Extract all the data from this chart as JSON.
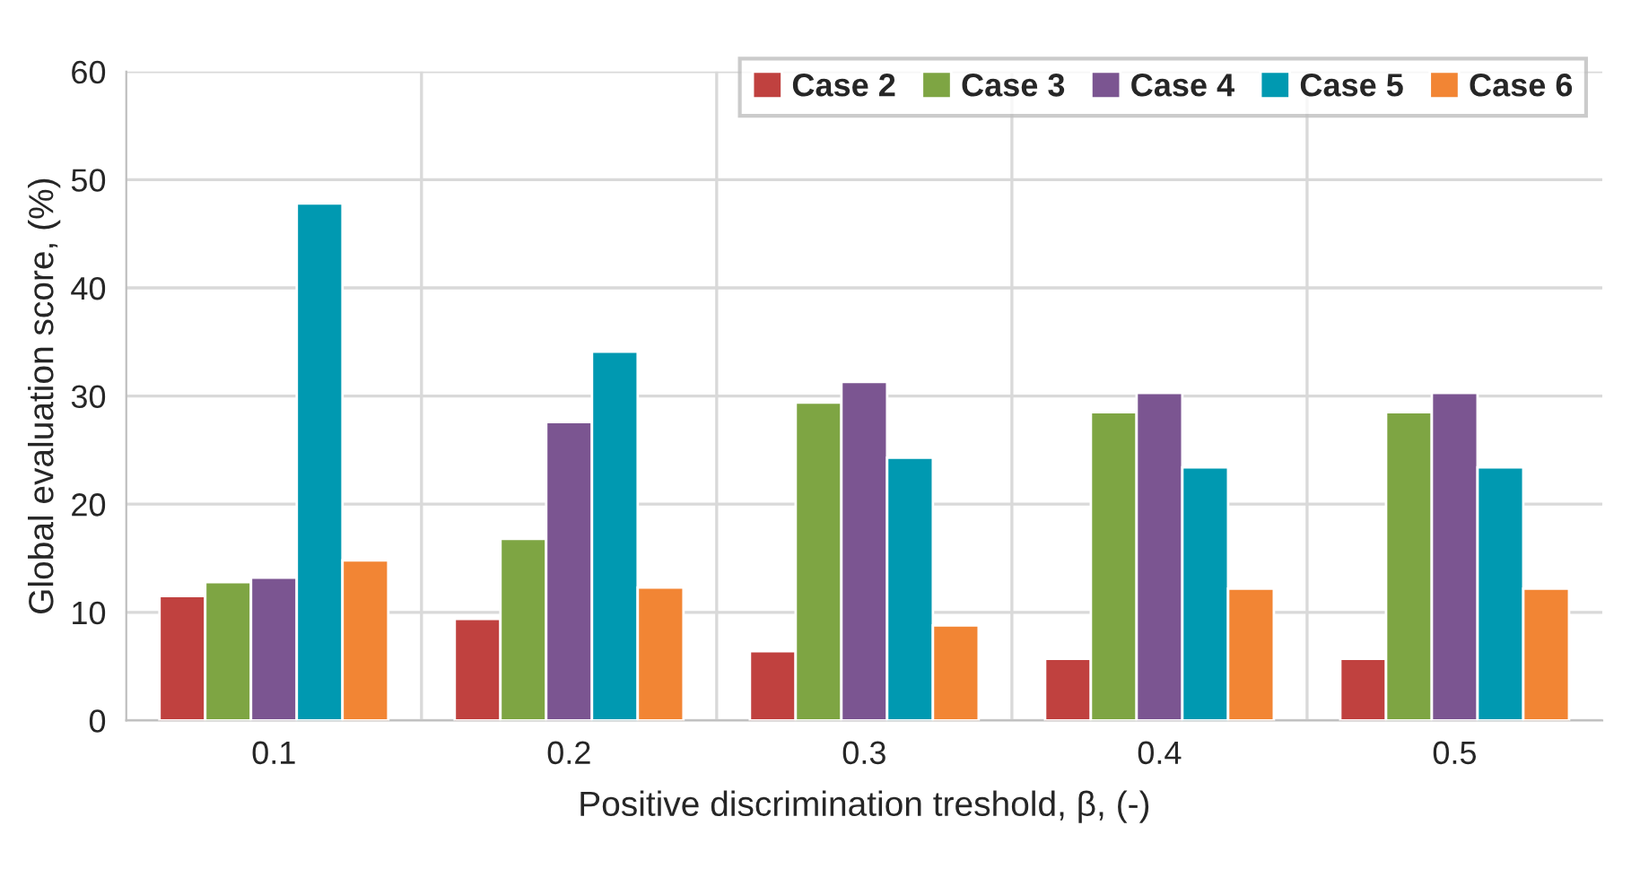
{
  "chart_data": {
    "type": "bar",
    "xlabel": "Positive discrimination treshold, β, (-)",
    "ylabel": "Global evaluation score, (%)",
    "categories": [
      "0.1",
      "0.2",
      "0.3",
      "0.4",
      "0.5"
    ],
    "series": [
      {
        "name": "Case 2",
        "color": "#c0413f",
        "values": [
          11.5,
          9.4,
          6.4,
          5.7,
          5.7
        ]
      },
      {
        "name": "Case 3",
        "color": "#7ea543",
        "values": [
          12.8,
          16.8,
          29.4,
          28.5,
          28.5
        ]
      },
      {
        "name": "Case 4",
        "color": "#7b5591",
        "values": [
          13.2,
          27.6,
          31.3,
          30.3,
          30.3
        ]
      },
      {
        "name": "Case 5",
        "color": "#0099b1",
        "values": [
          47.8,
          34.1,
          24.3,
          23.4,
          23.4
        ]
      },
      {
        "name": "Case 6",
        "color": "#f28534",
        "values": [
          14.8,
          12.3,
          8.8,
          12.2,
          12.2
        ]
      }
    ],
    "ylim": [
      0,
      60
    ],
    "yticks": [
      0,
      10,
      20,
      30,
      40,
      50,
      60
    ],
    "grid": true,
    "legend": "top right"
  }
}
